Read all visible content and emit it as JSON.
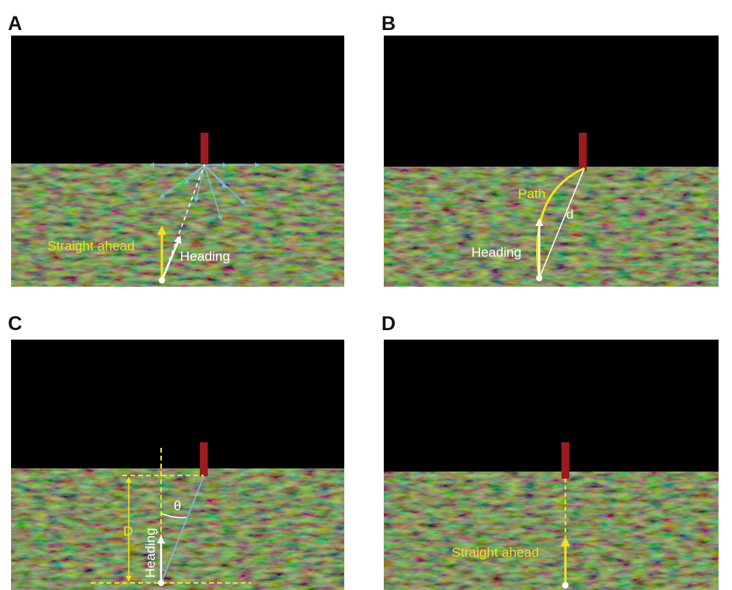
{
  "panels": [
    {
      "label": "A",
      "annotations": [
        "Straight ahead",
        "Heading"
      ]
    },
    {
      "label": "B",
      "annotations": [
        "Path",
        "d",
        "Heading"
      ]
    },
    {
      "label": "C",
      "annotations": [
        "D",
        "θ",
        "Heading"
      ]
    },
    {
      "label": "D",
      "annotations": [
        "Straight ahead"
      ]
    }
  ]
}
